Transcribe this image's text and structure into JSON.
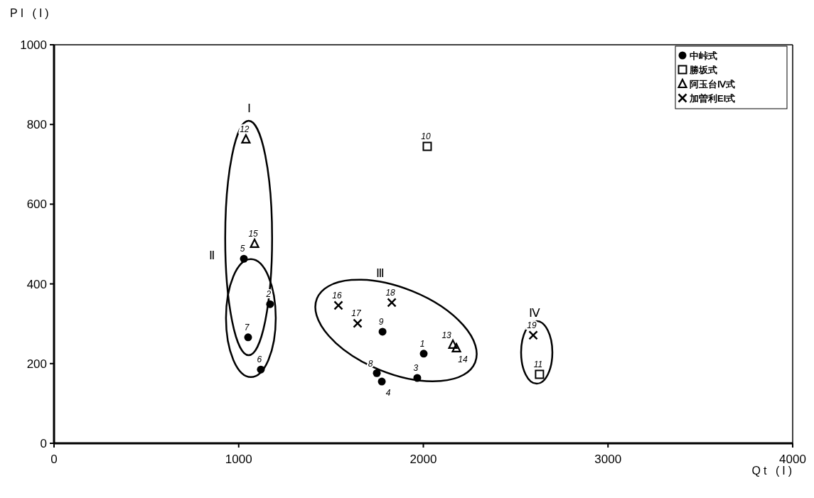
{
  "chart_data": {
    "type": "scatter",
    "xlabel": "Qt (I)",
    "ylabel": "PI (I)",
    "xlim": [
      0,
      4000
    ],
    "xticks": [
      0,
      1000,
      2000,
      3000,
      4000
    ],
    "ylim": [
      0,
      1000
    ],
    "yticks": [
      0,
      200,
      400,
      600,
      800,
      1000
    ],
    "grid": false,
    "legend": "top right",
    "series": [
      {
        "name": "中峠式",
        "color": "#000000",
        "marker": "circle",
        "x": [
          2002,
          1170,
          1967,
          1775,
          1028,
          1120,
          1051,
          1748,
          1779
        ],
        "values": [
          225,
          349,
          164,
          155,
          463,
          185,
          266,
          176,
          280
        ]
      },
      {
        "name": "勝坂式",
        "color": "#000000",
        "marker": "square",
        "x": [
          2021,
          2629
        ],
        "values": [
          745,
          173
        ]
      },
      {
        "name": "阿玉台Ⅳ式",
        "color": "#000000",
        "marker": "triangle",
        "x": [
          1039,
          1086,
          2160,
          2179
        ],
        "values": [
          763,
          501,
          248,
          239
        ]
      },
      {
        "name": "加曽利EI式",
        "color": "#000000",
        "marker": "cross",
        "x": [
          1540,
          1644,
          1829,
          2595
        ],
        "values": [
          346,
          301,
          353,
          271
        ]
      }
    ],
    "annotations": [
      {
        "text": "1",
        "x": 2002,
        "y": 225
      },
      {
        "text": "2",
        "x": 1170,
        "y": 349
      },
      {
        "text": "3",
        "x": 1967,
        "y": 164
      },
      {
        "text": "4",
        "x": 1775,
        "y": 155
      },
      {
        "text": "5",
        "x": 1028,
        "y": 463
      },
      {
        "text": "6",
        "x": 1120,
        "y": 185
      },
      {
        "text": "7",
        "x": 1051,
        "y": 266
      },
      {
        "text": "8",
        "x": 1748,
        "y": 176
      },
      {
        "text": "9",
        "x": 1779,
        "y": 280
      },
      {
        "text": "10",
        "x": 2021,
        "y": 745
      },
      {
        "text": "11",
        "x": 2629,
        "y": 173
      },
      {
        "text": "12",
        "x": 1039,
        "y": 763
      },
      {
        "text": "15",
        "x": 1086,
        "y": 501
      },
      {
        "text": "13",
        "x": 2160,
        "y": 248
      },
      {
        "text": "14",
        "x": 2179,
        "y": 239
      },
      {
        "text": "16",
        "x": 1540,
        "y": 346
      },
      {
        "text": "17",
        "x": 1644,
        "y": 301
      },
      {
        "text": "18",
        "x": 1829,
        "y": 353
      },
      {
        "text": "19",
        "x": 2595,
        "y": 271
      },
      "Ⅰ",
      "Ⅱ",
      "Ⅲ",
      "Ⅳ"
    ]
  }
}
